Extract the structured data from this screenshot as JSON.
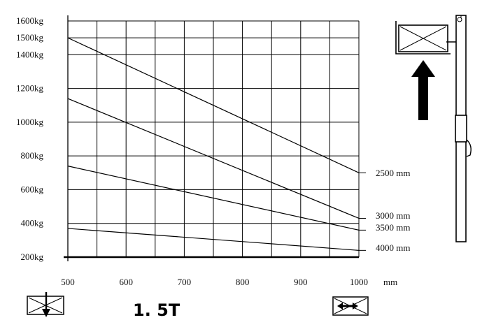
{
  "chart_data": {
    "type": "line",
    "xlabel": "mm",
    "ylabel": "",
    "xlim": [
      500,
      1000
    ],
    "ylim": [
      200,
      1600
    ],
    "x_ticks": [
      "500",
      "600",
      "700",
      "800",
      "900",
      "1000"
    ],
    "y_ticks": [
      {
        "value": 200,
        "label": "200kg"
      },
      {
        "value": 400,
        "label": "400kg"
      },
      {
        "value": 600,
        "label": "600kg"
      },
      {
        "value": 800,
        "label": "800kg"
      },
      {
        "value": 1000,
        "label": "1000kg"
      },
      {
        "value": 1200,
        "label": "1200kg"
      },
      {
        "value": 1400,
        "label": "1400kg"
      },
      {
        "value": 1500,
        "label": "1500kg"
      },
      {
        "value": 1600,
        "label": "1600kg"
      }
    ],
    "grid": true,
    "series": [
      {
        "name": "2500 mm",
        "x": [
          500,
          1000
        ],
        "y": [
          1500,
          700
        ]
      },
      {
        "name": "3000 mm",
        "x": [
          500,
          1000
        ],
        "y": [
          1140,
          430
        ]
      },
      {
        "name": "3500 mm",
        "x": [
          500,
          1000
        ],
        "y": [
          740,
          360
        ]
      },
      {
        "name": "4000 mm",
        "x": [
          500,
          1000
        ],
        "y": [
          370,
          240
        ]
      }
    ],
    "capacity": "1. 5T"
  },
  "icons": {
    "pallet": "pallet-crossed-box-icon",
    "lift_arrow": "up-arrow-icon",
    "mast": "forklift-mast-icon",
    "load_down": "load-down-icon",
    "load_center": "load-center-icon"
  },
  "colors": {
    "line": "#000000",
    "grid": "#000000",
    "background": "#ffffff"
  }
}
